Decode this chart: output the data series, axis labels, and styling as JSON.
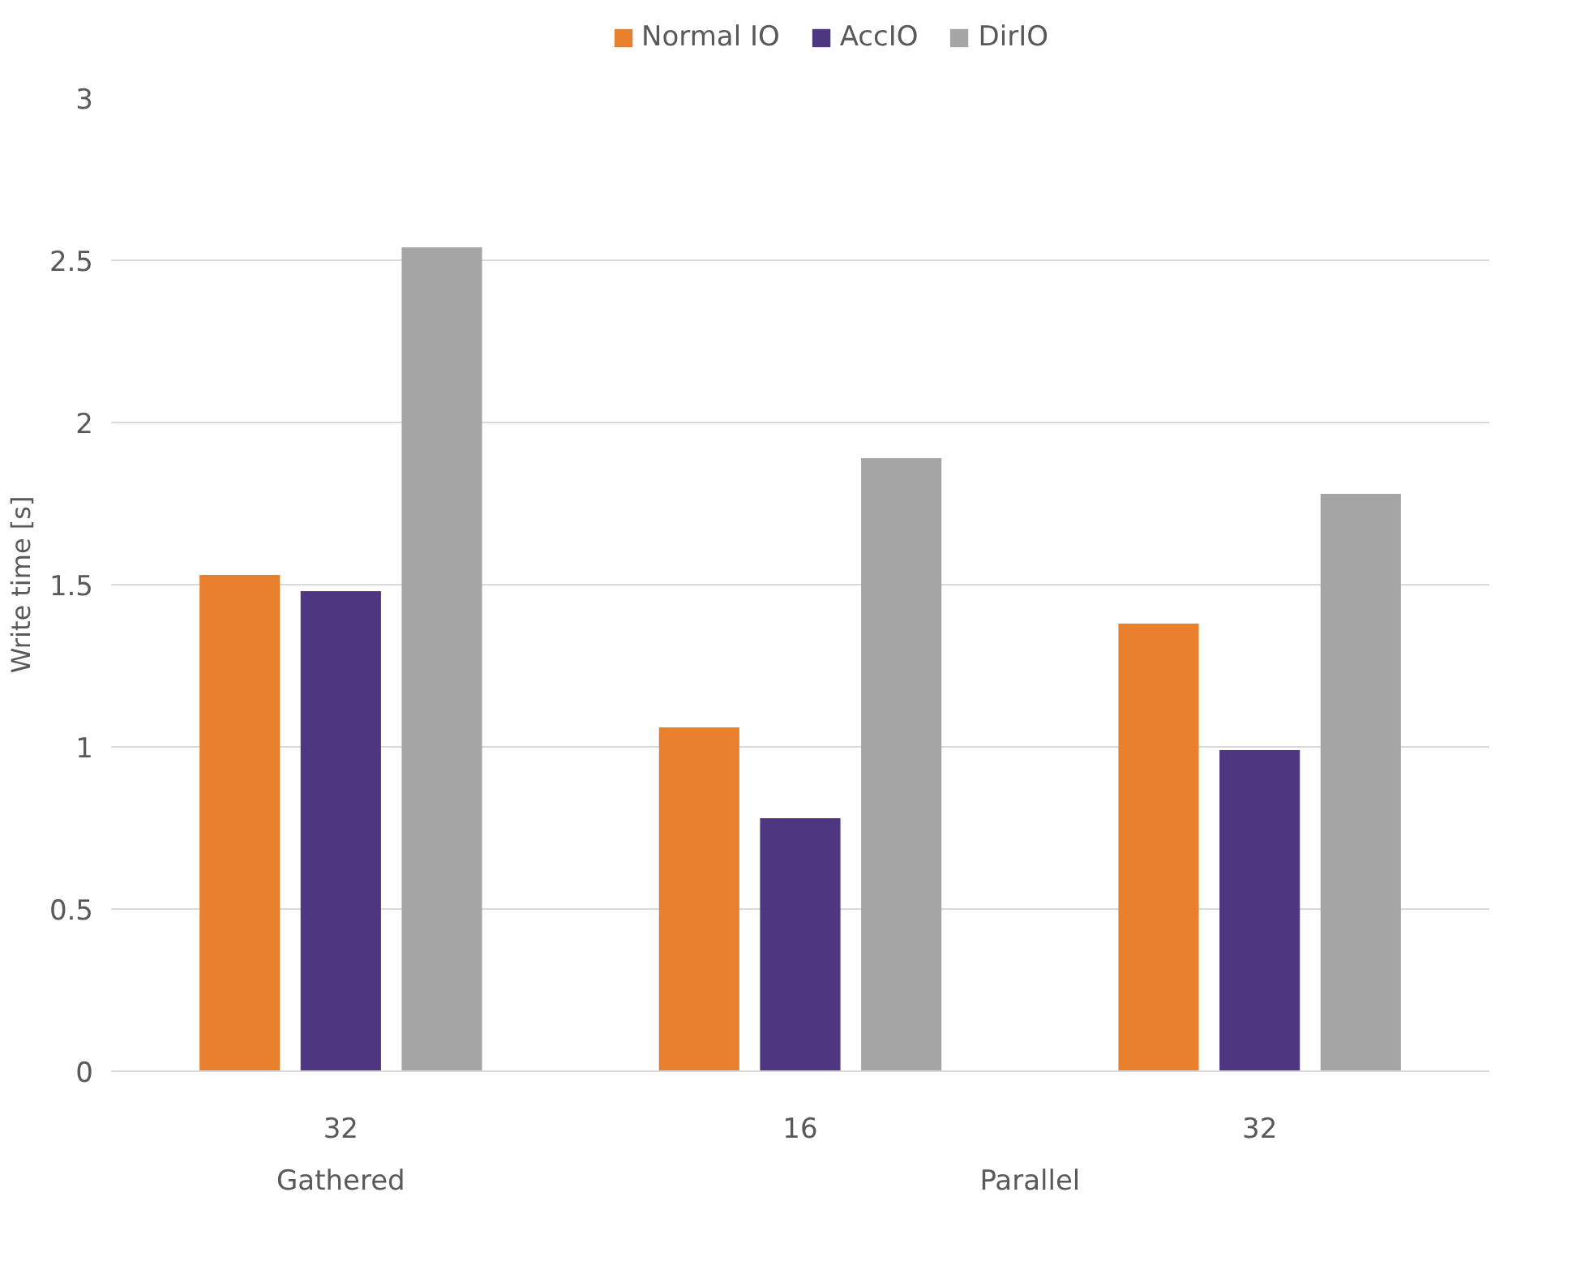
{
  "chart_data": {
    "type": "bar",
    "ylabel": "Write time [s]",
    "categories": [
      "32",
      "16",
      "32"
    ],
    "series": [
      {
        "name": "Normal IO",
        "color": "#e8812e",
        "values": [
          1.53,
          1.06,
          1.38
        ]
      },
      {
        "name": "AccIO",
        "color": "#4f3681",
        "values": [
          1.48,
          0.78,
          0.99
        ]
      },
      {
        "name": "DirIO",
        "color": "#a5a5a5",
        "values": [
          2.54,
          1.89,
          1.78
        ]
      }
    ],
    "ylim": [
      0,
      3
    ],
    "yticks": [
      0,
      0.5,
      1,
      1.5,
      2,
      2.5,
      3
    ],
    "grid": "y",
    "legend": "top",
    "annotations": [
      "Gathered",
      "Parallel"
    ]
  }
}
